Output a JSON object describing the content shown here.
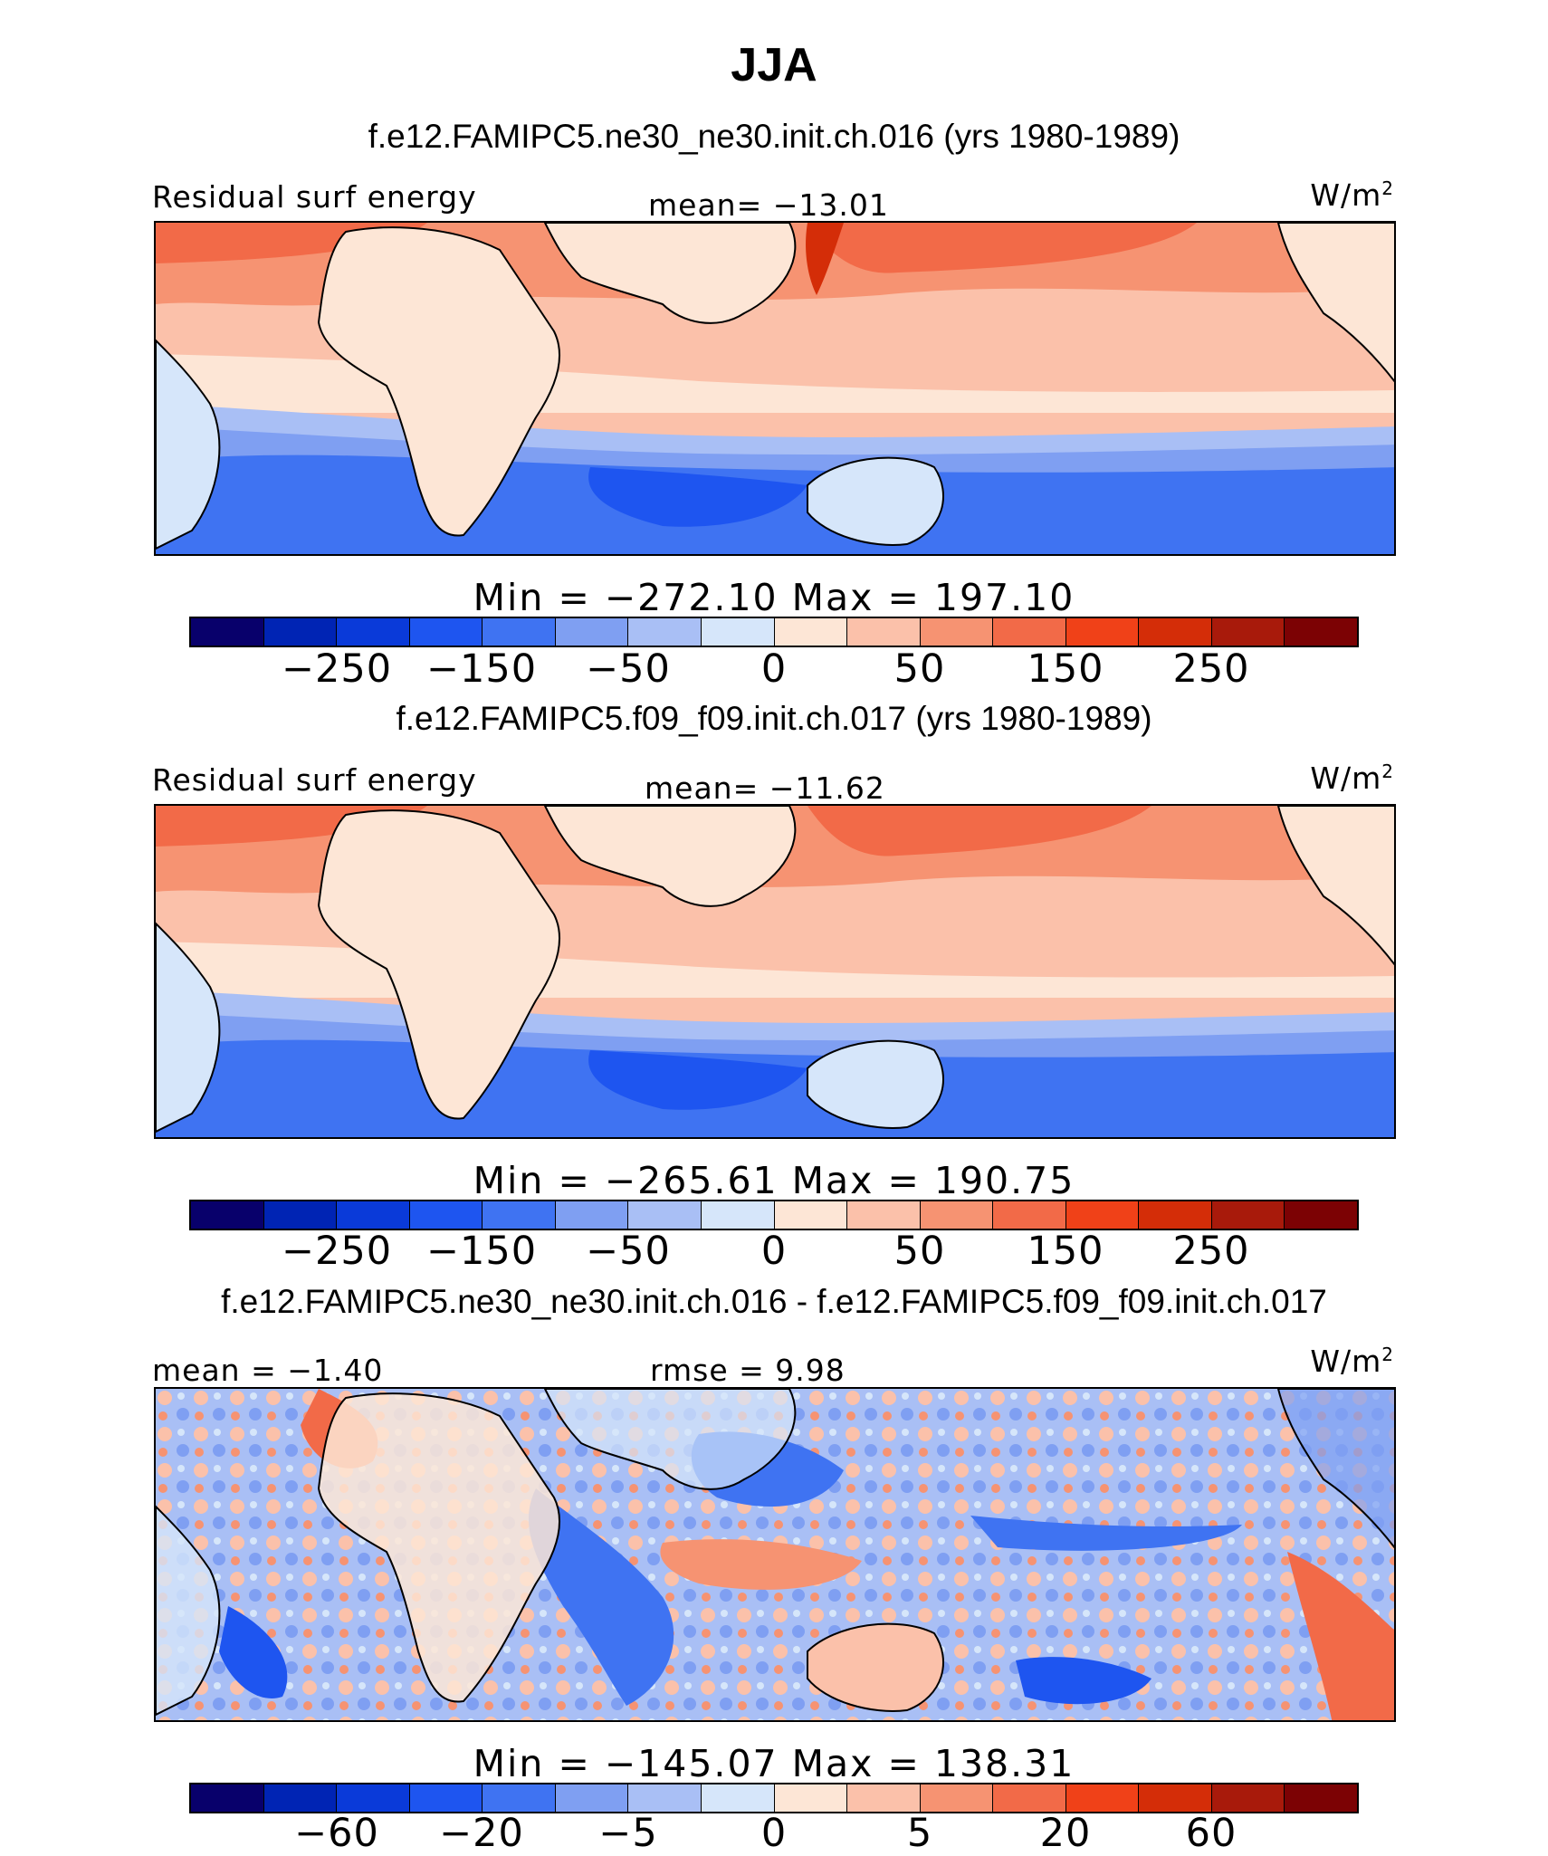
{
  "title": "JJA",
  "colorbar_colors": [
    "#08006b",
    "#0024b4",
    "#0a3ad9",
    "#1e55f0",
    "#3f73f2",
    "#7f9ff2",
    "#a9bff5",
    "#d6e6fa",
    "#fde6d6",
    "#fbc1aa",
    "#f69372",
    "#f26a48",
    "#f04118",
    "#d42d08",
    "#a81a0b",
    "#7c0204"
  ],
  "panels": [
    {
      "case": "f.e12.FAMIPC5.ne30_ne30.init.ch.016 (yrs 1980-1989)",
      "left_label": "Residual surf energy",
      "center_label": "mean= −13.01",
      "units": "W/m",
      "units_sup": "2",
      "minmax": "Min = −272.10 Max = 197.10",
      "ticks": [
        "−250",
        "−150",
        "−50",
        "0",
        "50",
        "150",
        "250"
      ]
    },
    {
      "case": "f.e12.FAMIPC5.f09_f09.init.ch.017 (yrs 1980-1989)",
      "left_label": "Residual surf energy",
      "center_label": "mean= −11.62",
      "units": "W/m",
      "units_sup": "2",
      "minmax": "Min = −265.61 Max = 190.75",
      "ticks": [
        "−250",
        "−150",
        "−50",
        "0",
        "50",
        "150",
        "250"
      ]
    },
    {
      "case": "f.e12.FAMIPC5.ne30_ne30.init.ch.016 - f.e12.FAMIPC5.f09_f09.init.ch.017",
      "left_label": "mean = −1.40",
      "center_label": "rmse = 9.98",
      "units": "W/m",
      "units_sup": "2",
      "minmax": "Min = −145.07 Max = 138.31",
      "ticks": [
        "−60",
        "−20",
        "−5",
        "0",
        "5",
        "20",
        "60"
      ]
    }
  ]
}
